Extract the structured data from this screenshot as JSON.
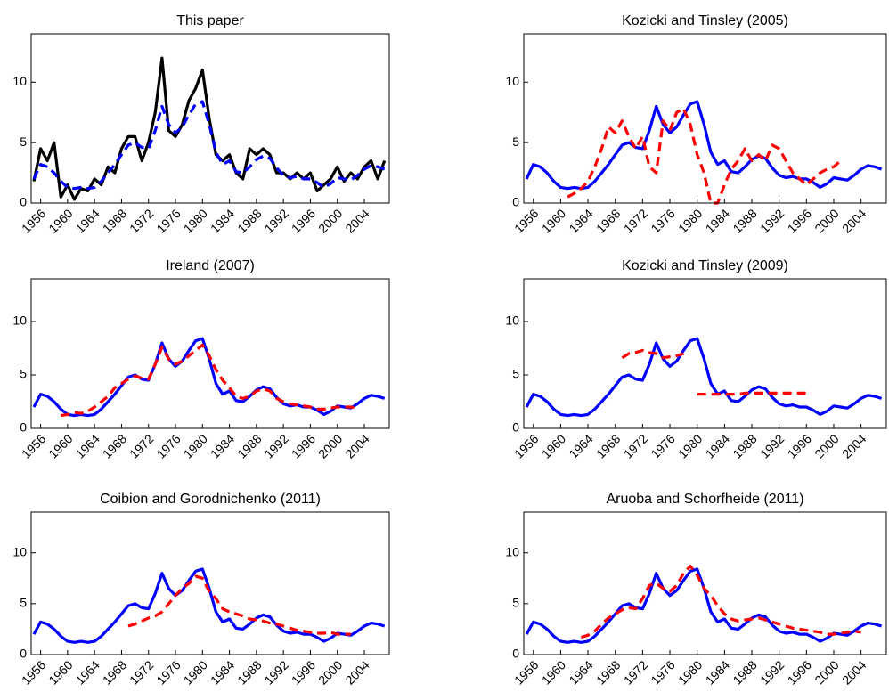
{
  "chart_data": [
    {
      "type": "line",
      "title": "This paper",
      "x": [
        1955,
        1956,
        1957,
        1958,
        1959,
        1960,
        1961,
        1962,
        1963,
        1964,
        1965,
        1966,
        1967,
        1968,
        1969,
        1970,
        1971,
        1972,
        1973,
        1974,
        1975,
        1976,
        1977,
        1978,
        1979,
        1980,
        1981,
        1982,
        1983,
        1984,
        1985,
        1986,
        1987,
        1988,
        1989,
        1990,
        1991,
        1992,
        1993,
        1994,
        1995,
        1996,
        1997,
        1998,
        1999,
        2000,
        2001,
        2002,
        2003,
        2004,
        2005,
        2006,
        2007
      ],
      "series": [
        {
          "color": "#000000",
          "line_style": "solid",
          "values": [
            1.8,
            4.5,
            3.5,
            5.0,
            0.5,
            1.5,
            0.3,
            1.2,
            1.0,
            2.0,
            1.5,
            3.0,
            2.5,
            4.5,
            5.5,
            5.5,
            3.5,
            5.0,
            7.5,
            12.0,
            6.0,
            5.5,
            6.5,
            8.5,
            9.5,
            11.0,
            7.0,
            4.0,
            3.5,
            4.0,
            2.5,
            2.0,
            4.5,
            4.0,
            4.5,
            4.0,
            2.5,
            2.5,
            2.0,
            2.5,
            2.0,
            2.5,
            1.0,
            1.5,
            2.0,
            3.0,
            1.8,
            2.5,
            2.0,
            3.0,
            3.5,
            2.0,
            3.5
          ]
        },
        {
          "color": "#0000ff",
          "line_style": "dashed",
          "values": [
            2.0,
            3.2,
            3.0,
            2.5,
            1.8,
            1.3,
            1.2,
            1.3,
            1.2,
            1.3,
            1.8,
            2.5,
            3.2,
            4.0,
            4.8,
            5.0,
            4.6,
            4.5,
            6.0,
            8.0,
            6.5,
            5.8,
            6.3,
            7.3,
            8.2,
            8.4,
            6.5,
            4.2,
            3.2,
            3.5,
            2.6,
            2.5,
            3.0,
            3.6,
            3.9,
            3.7,
            2.9,
            2.3,
            2.1,
            2.2,
            2.0,
            2.0,
            1.7,
            1.3,
            1.6,
            2.1,
            2.0,
            1.9,
            2.3,
            2.8,
            3.1,
            3.0,
            2.8
          ]
        }
      ],
      "xlim": [
        1954.6,
        2007.7
      ],
      "ylim": [
        0,
        14
      ],
      "yticks": [
        0,
        5,
        10
      ],
      "xticks": [
        1956,
        1960,
        1964,
        1968,
        1972,
        1976,
        1980,
        1984,
        1988,
        1992,
        1996,
        2000,
        2004
      ]
    },
    {
      "type": "line",
      "title": "Kozicki and Tinsley (2005)",
      "x": [
        1955,
        1956,
        1957,
        1958,
        1959,
        1960,
        1961,
        1962,
        1963,
        1964,
        1965,
        1966,
        1967,
        1968,
        1969,
        1970,
        1971,
        1972,
        1973,
        1974,
        1975,
        1976,
        1977,
        1978,
        1979,
        1980,
        1981,
        1982,
        1983,
        1984,
        1985,
        1986,
        1987,
        1988,
        1989,
        1990,
        1991,
        1992,
        1993,
        1994,
        1995,
        1996,
        1997,
        1998,
        1999,
        2000,
        2001,
        2002,
        2003,
        2004,
        2005,
        2006,
        2007
      ],
      "series": [
        {
          "color": "#0000ff",
          "line_style": "solid",
          "values": [
            2.0,
            3.2,
            3.0,
            2.5,
            1.8,
            1.3,
            1.2,
            1.3,
            1.2,
            1.3,
            1.8,
            2.5,
            3.2,
            4.0,
            4.8,
            5.0,
            4.6,
            4.5,
            6.0,
            8.0,
            6.5,
            5.8,
            6.3,
            7.3,
            8.2,
            8.4,
            6.5,
            4.2,
            3.2,
            3.5,
            2.6,
            2.5,
            3.0,
            3.6,
            3.9,
            3.7,
            2.9,
            2.3,
            2.1,
            2.2,
            2.0,
            2.0,
            1.7,
            1.3,
            1.6,
            2.1,
            2.0,
            1.9,
            2.3,
            2.8,
            3.1,
            3.0,
            2.8
          ]
        },
        {
          "color": "#ff0000",
          "line_style": "dashed",
          "values": [
            null,
            null,
            null,
            null,
            null,
            null,
            0.5,
            0.8,
            1.2,
            1.8,
            3.0,
            4.5,
            6.3,
            5.8,
            6.8,
            5.5,
            4.5,
            5.5,
            3.0,
            2.5,
            6.8,
            6.0,
            7.5,
            7.8,
            6.5,
            4.0,
            2.5,
            0,
            0,
            1.5,
            2.8,
            3.5,
            4.5,
            3.5,
            4.0,
            3.5,
            4.8,
            4.5,
            3.5,
            2.5,
            2.0,
            1.5,
            2.0,
            2.5,
            2.8,
            3.0,
            3.5,
            null,
            null,
            null,
            null,
            null,
            null
          ]
        }
      ],
      "xlim": [
        1954.6,
        2007.7
      ],
      "ylim": [
        0,
        14
      ],
      "yticks": [
        0,
        5,
        10
      ],
      "xticks": [
        1956,
        1960,
        1964,
        1968,
        1972,
        1976,
        1980,
        1984,
        1988,
        1992,
        1996,
        2000,
        2004
      ]
    },
    {
      "type": "line",
      "title": "Ireland (2007)",
      "x": [
        1955,
        1956,
        1957,
        1958,
        1959,
        1960,
        1961,
        1962,
        1963,
        1964,
        1965,
        1966,
        1967,
        1968,
        1969,
        1970,
        1971,
        1972,
        1973,
        1974,
        1975,
        1976,
        1977,
        1978,
        1979,
        1980,
        1981,
        1982,
        1983,
        1984,
        1985,
        1986,
        1987,
        1988,
        1989,
        1990,
        1991,
        1992,
        1993,
        1994,
        1995,
        1996,
        1997,
        1998,
        1999,
        2000,
        2001,
        2002,
        2003,
        2004,
        2005,
        2006,
        2007
      ],
      "series": [
        {
          "color": "#0000ff",
          "line_style": "solid",
          "values": [
            2.0,
            3.2,
            3.0,
            2.5,
            1.8,
            1.3,
            1.2,
            1.3,
            1.2,
            1.3,
            1.8,
            2.5,
            3.2,
            4.0,
            4.8,
            5.0,
            4.6,
            4.5,
            6.0,
            8.0,
            6.5,
            5.8,
            6.3,
            7.3,
            8.2,
            8.4,
            6.5,
            4.2,
            3.2,
            3.5,
            2.6,
            2.5,
            3.0,
            3.6,
            3.9,
            3.7,
            2.9,
            2.3,
            2.1,
            2.2,
            2.0,
            2.0,
            1.7,
            1.3,
            1.6,
            2.1,
            2.0,
            1.9,
            2.3,
            2.8,
            3.1,
            3.0,
            2.8
          ]
        },
        {
          "color": "#ff0000",
          "line_style": "dashed",
          "values": [
            null,
            null,
            null,
            null,
            1.2,
            1.3,
            1.5,
            1.4,
            1.6,
            2.0,
            2.5,
            3.0,
            3.8,
            4.2,
            4.6,
            4.9,
            4.7,
            4.6,
            6.0,
            7.6,
            6.5,
            6.0,
            6.3,
            6.8,
            7.3,
            7.8,
            6.8,
            5.5,
            4.5,
            3.8,
            3.0,
            2.8,
            3.0,
            3.5,
            3.7,
            3.5,
            2.8,
            2.5,
            2.3,
            2.2,
            2.1,
            2.0,
            1.8,
            1.8,
            1.9,
            2.0,
            2.0,
            2.0,
            1.9,
            null,
            null,
            null,
            null
          ]
        }
      ],
      "xlim": [
        1954.6,
        2007.7
      ],
      "ylim": [
        0,
        14
      ],
      "yticks": [
        0,
        5,
        10
      ],
      "xticks": [
        1956,
        1960,
        1964,
        1968,
        1972,
        1976,
        1980,
        1984,
        1988,
        1992,
        1996,
        2000,
        2004
      ]
    },
    {
      "type": "line",
      "title": "Kozicki and Tinsley (2009)",
      "x": [
        1955,
        1956,
        1957,
        1958,
        1959,
        1960,
        1961,
        1962,
        1963,
        1964,
        1965,
        1966,
        1967,
        1968,
        1969,
        1970,
        1971,
        1972,
        1973,
        1974,
        1975,
        1976,
        1977,
        1978,
        1979,
        1980,
        1981,
        1982,
        1983,
        1984,
        1985,
        1986,
        1987,
        1988,
        1989,
        1990,
        1991,
        1992,
        1993,
        1994,
        1995,
        1996,
        1997,
        1998,
        1999,
        2000,
        2001,
        2002,
        2003,
        2004,
        2005,
        2006,
        2007
      ],
      "series": [
        {
          "color": "#0000ff",
          "line_style": "solid",
          "values": [
            2.0,
            3.2,
            3.0,
            2.5,
            1.8,
            1.3,
            1.2,
            1.3,
            1.2,
            1.3,
            1.8,
            2.5,
            3.2,
            4.0,
            4.8,
            5.0,
            4.6,
            4.5,
            6.0,
            8.0,
            6.5,
            5.8,
            6.3,
            7.3,
            8.2,
            8.4,
            6.5,
            4.2,
            3.2,
            3.5,
            2.6,
            2.5,
            3.0,
            3.6,
            3.9,
            3.7,
            2.9,
            2.3,
            2.1,
            2.2,
            2.0,
            2.0,
            1.7,
            1.3,
            1.6,
            2.1,
            2.0,
            1.9,
            2.3,
            2.8,
            3.1,
            3.0,
            2.8
          ]
        },
        {
          "color": "#ff0000",
          "line_style": "dashed",
          "values": [
            null,
            null,
            null,
            null,
            null,
            null,
            null,
            null,
            null,
            null,
            null,
            null,
            null,
            null,
            6.6,
            7.0,
            7.1,
            7.3,
            7.1,
            7.0,
            6.6,
            6.7,
            6.8,
            7.0,
            null,
            3.2,
            3.2,
            3.2,
            3.2,
            3.2,
            3.2,
            3.2,
            3.3,
            3.3,
            3.3,
            3.3,
            3.3,
            3.3,
            3.3,
            3.3,
            3.3,
            3.3,
            null,
            null,
            null,
            null,
            null,
            null,
            null,
            null,
            null,
            null,
            null
          ]
        }
      ],
      "xlim": [
        1954.6,
        2007.7
      ],
      "ylim": [
        0,
        14
      ],
      "yticks": [
        0,
        5,
        10
      ],
      "xticks": [
        1956,
        1960,
        1964,
        1968,
        1972,
        1976,
        1980,
        1984,
        1988,
        1992,
        1996,
        2000,
        2004
      ]
    },
    {
      "type": "line",
      "title": "Coibion and Gorodnichenko (2011)",
      "x": [
        1955,
        1956,
        1957,
        1958,
        1959,
        1960,
        1961,
        1962,
        1963,
        1964,
        1965,
        1966,
        1967,
        1968,
        1969,
        1970,
        1971,
        1972,
        1973,
        1974,
        1975,
        1976,
        1977,
        1978,
        1979,
        1980,
        1981,
        1982,
        1983,
        1984,
        1985,
        1986,
        1987,
        1988,
        1989,
        1990,
        1991,
        1992,
        1993,
        1994,
        1995,
        1996,
        1997,
        1998,
        1999,
        2000,
        2001,
        2002,
        2003,
        2004,
        2005,
        2006,
        2007
      ],
      "series": [
        {
          "color": "#0000ff",
          "line_style": "solid",
          "values": [
            2.0,
            3.2,
            3.0,
            2.5,
            1.8,
            1.3,
            1.2,
            1.3,
            1.2,
            1.3,
            1.8,
            2.5,
            3.2,
            4.0,
            4.8,
            5.0,
            4.6,
            4.5,
            6.0,
            8.0,
            6.5,
            5.8,
            6.3,
            7.3,
            8.2,
            8.4,
            6.5,
            4.2,
            3.2,
            3.5,
            2.6,
            2.5,
            3.0,
            3.6,
            3.9,
            3.7,
            2.9,
            2.3,
            2.1,
            2.2,
            2.0,
            2.0,
            1.7,
            1.3,
            1.6,
            2.1,
            2.0,
            1.9,
            2.3,
            2.8,
            3.1,
            3.0,
            2.8
          ]
        },
        {
          "color": "#ff0000",
          "line_style": "dashed",
          "values": [
            null,
            null,
            null,
            null,
            null,
            null,
            null,
            null,
            null,
            null,
            null,
            null,
            null,
            null,
            2.8,
            3.0,
            3.3,
            3.6,
            3.8,
            4.2,
            5.0,
            5.8,
            6.5,
            7.0,
            7.7,
            7.5,
            6.2,
            5.5,
            4.5,
            4.2,
            4.0,
            3.8,
            3.5,
            3.4,
            3.3,
            3.1,
            3.0,
            2.8,
            2.6,
            2.4,
            2.3,
            2.2,
            2.1,
            2.1,
            2.2,
            2.0,
            2.0,
            2.0,
            null,
            null,
            null,
            null,
            null
          ]
        }
      ],
      "xlim": [
        1954.6,
        2007.7
      ],
      "ylim": [
        0,
        14
      ],
      "yticks": [
        0,
        5,
        10
      ],
      "xticks": [
        1956,
        1960,
        1964,
        1968,
        1972,
        1976,
        1980,
        1984,
        1988,
        1992,
        1996,
        2000,
        2004
      ]
    },
    {
      "type": "line",
      "title": "Aruoba and Schorfheide (2011)",
      "x": [
        1955,
        1956,
        1957,
        1958,
        1959,
        1960,
        1961,
        1962,
        1963,
        1964,
        1965,
        1966,
        1967,
        1968,
        1969,
        1970,
        1971,
        1972,
        1973,
        1974,
        1975,
        1976,
        1977,
        1978,
        1979,
        1980,
        1981,
        1982,
        1983,
        1984,
        1985,
        1986,
        1987,
        1988,
        1989,
        1990,
        1991,
        1992,
        1993,
        1994,
        1995,
        1996,
        1997,
        1998,
        1999,
        2000,
        2001,
        2002,
        2003,
        2004,
        2005,
        2006,
        2007
      ],
      "series": [
        {
          "color": "#0000ff",
          "line_style": "solid",
          "values": [
            2.0,
            3.2,
            3.0,
            2.5,
            1.8,
            1.3,
            1.2,
            1.3,
            1.2,
            1.3,
            1.8,
            2.5,
            3.2,
            4.0,
            4.8,
            5.0,
            4.6,
            4.5,
            6.0,
            8.0,
            6.5,
            5.8,
            6.3,
            7.3,
            8.2,
            8.4,
            6.5,
            4.2,
            3.2,
            3.5,
            2.6,
            2.5,
            3.0,
            3.6,
            3.9,
            3.7,
            2.9,
            2.3,
            2.1,
            2.2,
            2.0,
            2.0,
            1.7,
            1.3,
            1.6,
            2.1,
            2.0,
            1.9,
            2.3,
            2.8,
            3.1,
            3.0,
            2.8
          ]
        },
        {
          "color": "#ff0000",
          "line_style": "dashed",
          "values": [
            null,
            null,
            null,
            null,
            null,
            null,
            null,
            null,
            1.7,
            1.9,
            2.3,
            3.0,
            3.6,
            4.0,
            4.4,
            4.6,
            4.5,
            5.5,
            6.8,
            7.0,
            6.5,
            6.2,
            6.8,
            8.0,
            8.7,
            7.8,
            6.5,
            5.8,
            4.8,
            4.0,
            3.5,
            3.3,
            3.4,
            3.5,
            3.6,
            3.4,
            3.2,
            3.0,
            2.8,
            2.6,
            2.5,
            2.4,
            2.3,
            2.2,
            2.0,
            2.0,
            2.1,
            2.2,
            2.3,
            2.2,
            null,
            null,
            null
          ]
        }
      ],
      "xlim": [
        1954.6,
        2007.7
      ],
      "ylim": [
        0,
        14
      ],
      "yticks": [
        0,
        5,
        10
      ],
      "xticks": [
        1956,
        1960,
        1964,
        1968,
        1972,
        1976,
        1980,
        1984,
        1988,
        1992,
        1996,
        2000,
        2004
      ]
    }
  ]
}
